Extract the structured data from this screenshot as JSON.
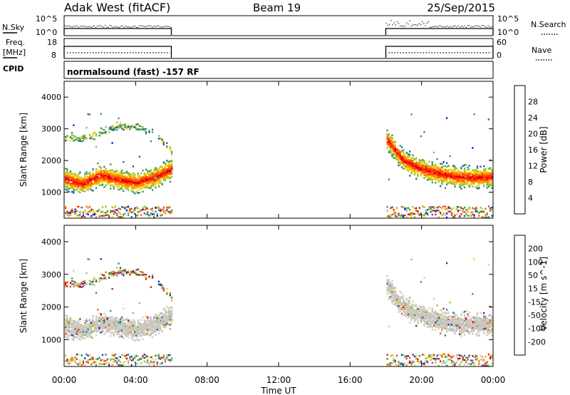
{
  "header": {
    "station": "Adak West (fitACF)",
    "beam": "Beam 19",
    "date": "25/Sep/2015"
  },
  "top_panels": {
    "nsky_label": "N.Sky",
    "nsky_ticks": [
      "10^5",
      "10^0"
    ],
    "nsearch_label": "N.Search",
    "nsearch_ticks": [
      "10^5",
      "10^0"
    ],
    "freq_label_1": "Freq.",
    "freq_label_2": "[MHz]",
    "freq_ticks": [
      "18",
      "8"
    ],
    "nave_label": "Nave",
    "nave_ticks": [
      "60",
      "0"
    ],
    "cpid_label": "CPID",
    "cpid_text": "normalsound (fast) -157 RF"
  },
  "chart_data": [
    {
      "type": "heatmap",
      "title": "",
      "xlabel": "Time UT",
      "ylabel": "Slant Range [km]",
      "x_ticks": [
        "00:00",
        "04:00",
        "08:00",
        "12:00",
        "16:00",
        "20:00",
        "00:00"
      ],
      "x_range_hours": [
        0,
        24
      ],
      "y_ticks": [
        1000,
        2000,
        3000,
        4000
      ],
      "y_range_km": [
        180,
        4500
      ],
      "colorbar": {
        "label": "Power [dB]",
        "ticks": [
          4,
          8,
          12,
          16,
          20,
          24,
          28
        ],
        "range": [
          0,
          32
        ],
        "colors": [
          "#0000ee",
          "#1f4fa0",
          "#2e8b57",
          "#7fbf3f",
          "#f0d000",
          "#ff8c00",
          "#ff4500",
          "#e80000"
        ]
      },
      "data_windows_hours": [
        [
          0,
          6
        ],
        [
          18,
          24
        ]
      ],
      "echo_bands": [
        {
          "name": "main",
          "time_h": [
            0,
            1,
            2,
            3,
            4,
            5,
            6,
            18,
            19,
            20,
            21,
            22,
            23,
            24
          ],
          "range_km": [
            1450,
            1280,
            1550,
            1420,
            1320,
            1480,
            1750,
            2700,
            2000,
            1750,
            1600,
            1500,
            1480,
            1500
          ],
          "power_db": 28
        },
        {
          "name": "upper",
          "time_h": [
            0,
            1,
            2,
            3,
            4,
            5,
            6
          ],
          "range_km": [
            2700,
            2700,
            2900,
            3100,
            3100,
            2900,
            2300
          ],
          "power_db": 12
        }
      ]
    },
    {
      "type": "heatmap",
      "title": "",
      "xlabel": "Time UT",
      "ylabel": "Slant Range [km]",
      "x_ticks": [
        "00:00",
        "04:00",
        "08:00",
        "12:00",
        "16:00",
        "20:00",
        "00:00"
      ],
      "x_range_hours": [
        0,
        24
      ],
      "y_ticks": [
        1000,
        2000,
        3000,
        4000
      ],
      "y_range_km": [
        180,
        4500
      ],
      "colorbar": {
        "label": "Velocity [m s^-1]",
        "ticks": [
          200,
          100,
          50,
          15,
          -15,
          -50,
          -100,
          -200
        ],
        "colors": [
          "#1a2aa8",
          "#2a6ab0",
          "#2e8b57",
          "#7fcf3f",
          "#c8c8c0",
          "#f0d000",
          "#ff8c00",
          "#ff4500",
          "#e80000"
        ]
      },
      "data_windows_hours": [
        [
          0,
          6
        ],
        [
          18,
          24
        ]
      ],
      "dominant_velocity_class": "-15 to 15"
    }
  ],
  "colors": {
    "ground_scatter": "#c8c8c0"
  }
}
